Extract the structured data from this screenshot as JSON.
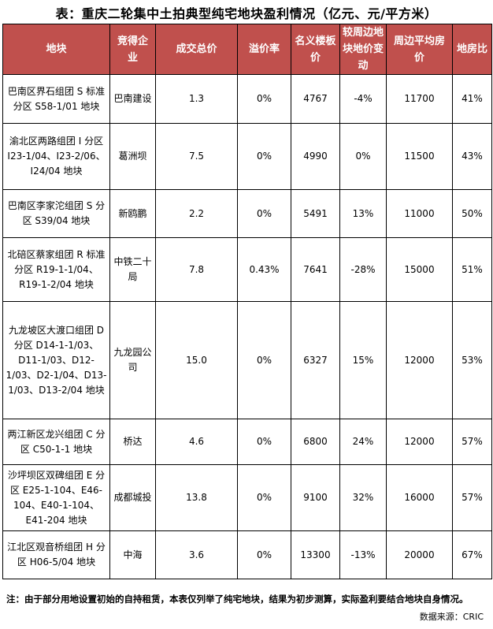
{
  "title": "表：重庆二轮集中土拍典型纯宅地块盈利情况（亿元、元/平方米）",
  "colors": {
    "header_bg": "#c0504d",
    "header_text": "#ffffff"
  },
  "table": {
    "headers": [
      "地块",
      "竞得企业",
      "成交总价",
      "溢价率",
      "名义楼板价",
      "较周边地块地价变动",
      "周边平均房价",
      "地房比"
    ],
    "rows": [
      [
        "巴南区界石组团 S 标准分区 S58-1/01 地块",
        "巴南建设",
        "1.3",
        "0%",
        "4767",
        "-4%",
        "11700",
        "41%"
      ],
      [
        "渝北区两路组团 I 分区 I23-1/04、I23-2/06、I24/04 地块",
        "葛洲坝",
        "7.5",
        "0%",
        "4990",
        "0%",
        "11500",
        "43%"
      ],
      [
        "巴南区李家沱组团 S 分区 S39/04 地块",
        "新鸥鹏",
        "2.2",
        "0%",
        "5491",
        "13%",
        "11000",
        "50%"
      ],
      [
        "北碚区蔡家组团 R 标准分区 R19-1-1/04、R19-1-2/04 地块",
        "中铁二十局",
        "7.8",
        "0.43%",
        "7641",
        "-28%",
        "15000",
        "51%"
      ],
      [
        "九龙坡区大渡口组团 D 分区 D14-1-1/03、D11-1/03、D12-1/03、D2-1/04、D13-1/03、D13-2/04 地块",
        "九龙园公司",
        "15.0",
        "0%",
        "6327",
        "15%",
        "12000",
        "53%"
      ],
      [
        "两江新区龙兴组团 C 分区 C50-1-1 地块",
        "桥达",
        "4.6",
        "0%",
        "6800",
        "24%",
        "12000",
        "57%"
      ],
      [
        "沙坪坝区双碑组团 E 分区 E25-1-104、E46-104、E40-1-104、E41-204 地块",
        "成都城投",
        "13.8",
        "0%",
        "9100",
        "32%",
        "16000",
        "57%"
      ],
      [
        "江北区观音桥组团 H 分区 H06-5/04 地块",
        "中海",
        "3.6",
        "0%",
        "13300",
        "-13%",
        "20000",
        "67%"
      ]
    ]
  },
  "note": "注：由于部分用地设置初始的自持租赁，本表仅列举了纯宅地块，结果为初步测算，实际盈利要结合地块自身情况。",
  "source": "数据来源：CRIC"
}
